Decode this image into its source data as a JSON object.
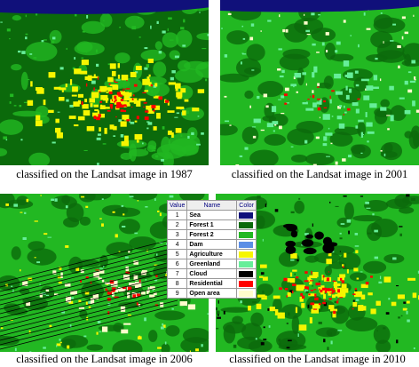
{
  "panels": [
    {
      "caption": "classified on the Landsat image in 1987"
    },
    {
      "caption": "classified on the Landsat image in 2001"
    },
    {
      "caption": "classified on the Landsat image in 2006"
    },
    {
      "caption": "classified on the Landsat image in 2010"
    }
  ],
  "legend": {
    "headers": [
      "Value",
      "Name",
      "Color"
    ],
    "rows": [
      {
        "value": "1",
        "name": "Sea",
        "color": "#10107a"
      },
      {
        "value": "2",
        "name": "Forest 1",
        "color": "#0b6a0b"
      },
      {
        "value": "3",
        "name": "Forest 2",
        "color": "#22b822"
      },
      {
        "value": "4",
        "name": "Dam",
        "color": "#5b8ee6"
      },
      {
        "value": "5",
        "name": "Agriculture",
        "color": "#f6f600"
      },
      {
        "value": "6",
        "name": "Greenland",
        "color": "#66ee99"
      },
      {
        "value": "7",
        "name": "Cloud",
        "color": "#000000"
      },
      {
        "value": "8",
        "name": "Residential",
        "color": "#ff0000"
      },
      {
        "value": "9",
        "name": "Open area",
        "color": "#fffccc"
      }
    ]
  }
}
